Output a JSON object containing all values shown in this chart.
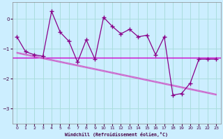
{
  "x": [
    0,
    1,
    2,
    3,
    4,
    5,
    6,
    7,
    8,
    9,
    10,
    11,
    12,
    13,
    14,
    15,
    16,
    17,
    18,
    19,
    20,
    21,
    22,
    23
  ],
  "y_main": [
    -0.6,
    -1.1,
    -1.2,
    -1.25,
    0.25,
    -0.45,
    -0.75,
    -1.45,
    -0.7,
    -1.35,
    0.05,
    -0.25,
    -0.5,
    -0.35,
    -0.6,
    -0.55,
    -1.2,
    -0.6,
    -2.55,
    -2.5,
    -2.15,
    -1.35,
    -1.35,
    -1.35
  ],
  "y_hline": -1.3,
  "trend_x0": 0,
  "trend_x1": 23,
  "trend_y0": -1.15,
  "trend_y1": -2.55,
  "trend2_y0": -1.12,
  "trend2_y1": -2.52,
  "color_main": "#880088",
  "color_trend": "#cc66cc",
  "color_hline": "#cc00cc",
  "background": "#cceeff",
  "grid_color": "#aadddd",
  "xlabel": "Windchill (Refroidissement éolien,°C)",
  "xlim": [
    -0.5,
    23.5
  ],
  "ylim": [
    -3.5,
    0.55
  ],
  "yticks": [
    0,
    -1,
    -2,
    -3
  ],
  "xticks": [
    0,
    1,
    2,
    3,
    4,
    5,
    6,
    7,
    8,
    9,
    10,
    11,
    12,
    13,
    14,
    15,
    16,
    17,
    18,
    19,
    20,
    21,
    22,
    23
  ]
}
